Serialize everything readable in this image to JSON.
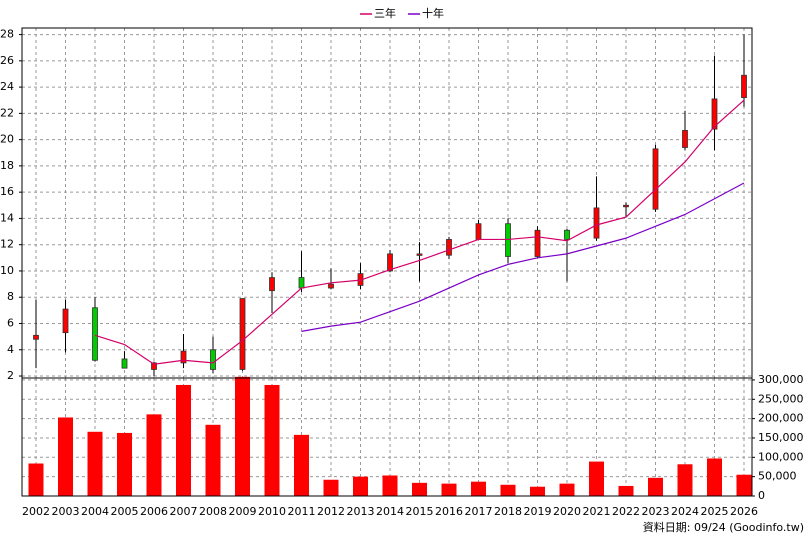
{
  "chart_data": [
    {
      "type": "candlestick",
      "series": [
        {
          "name": "三年",
          "color": "#d4006a",
          "values": [
            null,
            null,
            5.1,
            4.4,
            2.9,
            3.2,
            3.0,
            4.7,
            6.7,
            8.7,
            9.1,
            9.3,
            10.1,
            10.8,
            11.6,
            12.4,
            12.4,
            12.6,
            12.3,
            13.5,
            14.1,
            16.2,
            18.3,
            21.0,
            23.0
          ]
        },
        {
          "name": "十年",
          "color": "#7a00c8",
          "values": [
            null,
            null,
            null,
            null,
            null,
            null,
            null,
            null,
            null,
            5.4,
            5.8,
            6.1,
            6.9,
            7.7,
            8.7,
            9.7,
            10.5,
            11.0,
            11.3,
            11.9,
            12.5,
            13.4,
            14.3,
            15.5,
            16.7
          ]
        }
      ],
      "open": [
        4.8,
        5.3,
        7.2,
        3.3,
        2.5,
        3.0,
        4.0,
        2.5,
        8.5,
        9.5,
        8.7,
        8.9,
        10.0,
        11.2,
        11.2,
        12.4,
        13.6,
        11.1,
        13.1,
        12.5,
        14.9,
        14.7,
        19.4,
        20.8,
        23.2
      ],
      "high": [
        7.8,
        7.8,
        8.0,
        3.9,
        3.1,
        5.2,
        5.0,
        7.9,
        9.9,
        11.5,
        10.2,
        10.6,
        11.6,
        12.2,
        12.6,
        13.9,
        14.0,
        13.4,
        13.2,
        17.2,
        15.2,
        19.6,
        22.2,
        26.4,
        28.0
      ],
      "low": [
        2.6,
        3.8,
        3.1,
        2.6,
        2.0,
        2.6,
        2.2,
        2.4,
        6.8,
        8.4,
        8.6,
        8.6,
        9.9,
        9.2,
        10.9,
        12.4,
        10.6,
        11.0,
        9.2,
        12.3,
        14.1,
        14.5,
        19.2,
        19.2,
        22.5
      ],
      "close": [
        5.1,
        7.1,
        3.2,
        2.6,
        3.0,
        3.9,
        2.5,
        7.9,
        9.5,
        8.7,
        9.0,
        9.8,
        11.3,
        11.3,
        12.4,
        13.6,
        11.1,
        13.1,
        12.4,
        14.8,
        15.0,
        19.3,
        20.7,
        23.1,
        24.9
      ],
      "up_color": "#ff0000",
      "down_color": "#00cc00",
      "ylim": [
        1.85,
        28.5
      ],
      "yticks": [
        2,
        4,
        6,
        8,
        10,
        12,
        14,
        16,
        18,
        20,
        22,
        24,
        26,
        28
      ],
      "grid": true,
      "legend": "top"
    },
    {
      "type": "bar",
      "categories": [
        "2002",
        "2003",
        "2004",
        "2005",
        "2006",
        "2007",
        "2008",
        "2009",
        "2010",
        "2011",
        "2012",
        "2013",
        "2014",
        "2015",
        "2016",
        "2017",
        "2018",
        "2019",
        "2020",
        "2021",
        "2022",
        "2023",
        "2024",
        "2025",
        "2026"
      ],
      "values": [
        84000,
        203000,
        166000,
        163000,
        211000,
        287000,
        184000,
        308000,
        287000,
        158000,
        42000,
        50000,
        53000,
        34000,
        32000,
        37000,
        29000,
        24000,
        32000,
        89000,
        26000,
        47000,
        82000,
        97000,
        55000
      ],
      "color": "#ff0000",
      "ylim": [
        0,
        305000
      ],
      "yticks": [
        {
          "value": 0,
          "label": "0"
        },
        {
          "value": 50000,
          "label": "50,000"
        },
        {
          "value": 100000,
          "label": "100,000"
        },
        {
          "value": 150000,
          "label": "150,000"
        },
        {
          "value": 200000,
          "label": "200,000"
        },
        {
          "value": 250000,
          "label": "250,000"
        },
        {
          "value": 300000,
          "label": "300,000"
        }
      ],
      "grid": true
    }
  ],
  "footer": "資料日期: 09/24 (Goodinfo.tw)"
}
